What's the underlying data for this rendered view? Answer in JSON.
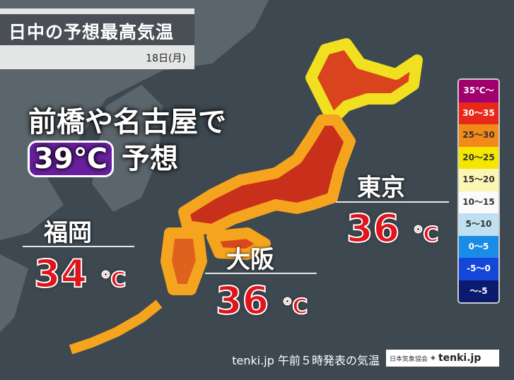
{
  "header": {
    "title": "日中の予想最高気温",
    "date": "18日(月)"
  },
  "headline": {
    "line1": "前橋や名古屋で",
    "temp": "39℃",
    "line2": "予想"
  },
  "cities": [
    {
      "name": "東京",
      "temp": "36",
      "unit": "℃"
    },
    {
      "name": "福岡",
      "temp": "34",
      "unit": "℃"
    },
    {
      "name": "大阪",
      "temp": "36",
      "unit": "℃"
    }
  ],
  "legend": [
    {
      "label": "35℃〜",
      "color": "#a0006e",
      "text": "#fff"
    },
    {
      "label": "30〜35",
      "color": "#e8281a",
      "text": "#fff"
    },
    {
      "label": "25〜30",
      "color": "#f28a1a",
      "text": "#333"
    },
    {
      "label": "20〜25",
      "color": "#f5e600",
      "text": "#333"
    },
    {
      "label": "15〜20",
      "color": "#fbf6b4",
      "text": "#333"
    },
    {
      "label": "10〜15",
      "color": "#fafafa",
      "text": "#333"
    },
    {
      "label": "5〜10",
      "color": "#bfe0f2",
      "text": "#333"
    },
    {
      "label": "0〜5",
      "color": "#1a8ce6",
      "text": "#fff"
    },
    {
      "label": "-5〜0",
      "color": "#1446d8",
      "text": "#fff"
    },
    {
      "label": "〜-5",
      "color": "#0a1a6e",
      "text": "#fff"
    }
  ],
  "footer": {
    "source": "tenki.jp 午前５時発表の気温",
    "logo_org": "日本気象協会",
    "logo_brand": "tenki.jp"
  }
}
